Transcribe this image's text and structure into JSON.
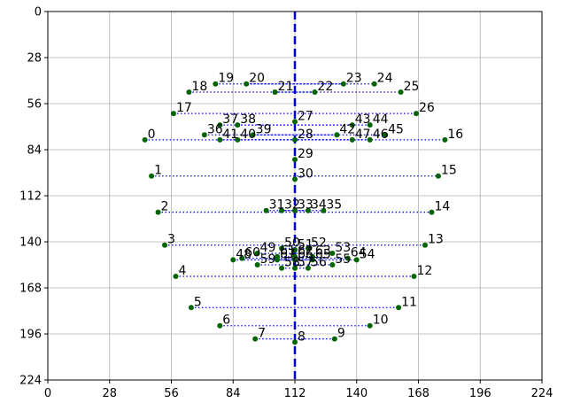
{
  "chart_data": {
    "type": "scatter",
    "title": "",
    "xlabel": "",
    "ylabel": "",
    "xlim": [
      0,
      224
    ],
    "ylim": [
      224,
      0
    ],
    "y_inverted": true,
    "grid": true,
    "xticks": [
      0,
      28,
      56,
      84,
      112,
      140,
      168,
      196,
      224
    ],
    "yticks": [
      0,
      28,
      56,
      84,
      112,
      140,
      168,
      196,
      224
    ],
    "point_color": "#006400",
    "pair_line_color": "#0000ff",
    "midline_color": "#0000cc",
    "midline_x": 112,
    "points": [
      {
        "label": "0",
        "x": 44,
        "y": 78
      },
      {
        "label": "1",
        "x": 47,
        "y": 100
      },
      {
        "label": "2",
        "x": 50,
        "y": 122
      },
      {
        "label": "3",
        "x": 53,
        "y": 142
      },
      {
        "label": "4",
        "x": 58,
        "y": 161
      },
      {
        "label": "5",
        "x": 65,
        "y": 180
      },
      {
        "label": "6",
        "x": 78,
        "y": 191
      },
      {
        "label": "7",
        "x": 94,
        "y": 199
      },
      {
        "label": "8",
        "x": 112,
        "y": 201
      },
      {
        "label": "9",
        "x": 130,
        "y": 199
      },
      {
        "label": "10",
        "x": 146,
        "y": 191
      },
      {
        "label": "11",
        "x": 159,
        "y": 180
      },
      {
        "label": "12",
        "x": 166,
        "y": 161
      },
      {
        "label": "13",
        "x": 171,
        "y": 142
      },
      {
        "label": "14",
        "x": 174,
        "y": 122
      },
      {
        "label": "15",
        "x": 177,
        "y": 100
      },
      {
        "label": "16",
        "x": 180,
        "y": 78
      },
      {
        "label": "17",
        "x": 57,
        "y": 62
      },
      {
        "label": "18",
        "x": 64,
        "y": 49
      },
      {
        "label": "19",
        "x": 76,
        "y": 44
      },
      {
        "label": "20",
        "x": 90,
        "y": 44
      },
      {
        "label": "21",
        "x": 103,
        "y": 49
      },
      {
        "label": "22",
        "x": 121,
        "y": 49
      },
      {
        "label": "23",
        "x": 134,
        "y": 44
      },
      {
        "label": "24",
        "x": 148,
        "y": 44
      },
      {
        "label": "25",
        "x": 160,
        "y": 49
      },
      {
        "label": "26",
        "x": 167,
        "y": 62
      },
      {
        "label": "27",
        "x": 112,
        "y": 67
      },
      {
        "label": "28",
        "x": 112,
        "y": 78
      },
      {
        "label": "29",
        "x": 112,
        "y": 90
      },
      {
        "label": "30",
        "x": 112,
        "y": 102
      },
      {
        "label": "31",
        "x": 99,
        "y": 121
      },
      {
        "label": "32",
        "x": 106,
        "y": 121
      },
      {
        "label": "33",
        "x": 112,
        "y": 121
      },
      {
        "label": "34",
        "x": 118,
        "y": 121
      },
      {
        "label": "35",
        "x": 125,
        "y": 121
      },
      {
        "label": "36",
        "x": 71,
        "y": 75
      },
      {
        "label": "37",
        "x": 78,
        "y": 69
      },
      {
        "label": "38",
        "x": 86,
        "y": 69
      },
      {
        "label": "39",
        "x": 93,
        "y": 75
      },
      {
        "label": "40",
        "x": 86,
        "y": 78
      },
      {
        "label": "41",
        "x": 78,
        "y": 78
      },
      {
        "label": "42",
        "x": 131,
        "y": 75
      },
      {
        "label": "43",
        "x": 138,
        "y": 69
      },
      {
        "label": "44",
        "x": 146,
        "y": 69
      },
      {
        "label": "45",
        "x": 153,
        "y": 75
      },
      {
        "label": "46",
        "x": 146,
        "y": 78
      },
      {
        "label": "47",
        "x": 138,
        "y": 78
      },
      {
        "label": "48",
        "x": 84,
        "y": 151
      },
      {
        "label": "49",
        "x": 95,
        "y": 147
      },
      {
        "label": "50",
        "x": 106,
        "y": 144
      },
      {
        "label": "51",
        "x": 112,
        "y": 145
      },
      {
        "label": "52",
        "x": 118,
        "y": 144
      },
      {
        "label": "53",
        "x": 129,
        "y": 147
      },
      {
        "label": "54",
        "x": 140,
        "y": 151
      },
      {
        "label": "55",
        "x": 129,
        "y": 154
      },
      {
        "label": "56",
        "x": 118,
        "y": 156
      },
      {
        "label": "57",
        "x": 112,
        "y": 156
      },
      {
        "label": "58",
        "x": 106,
        "y": 156
      },
      {
        "label": "59",
        "x": 95,
        "y": 154
      },
      {
        "label": "60",
        "x": 88,
        "y": 150
      },
      {
        "label": "61",
        "x": 104,
        "y": 149
      },
      {
        "label": "62",
        "x": 112,
        "y": 149
      },
      {
        "label": "63",
        "x": 120,
        "y": 149
      },
      {
        "label": "64",
        "x": 136,
        "y": 150
      },
      {
        "label": "65",
        "x": 120,
        "y": 151
      },
      {
        "label": "66",
        "x": 112,
        "y": 151
      },
      {
        "label": "67",
        "x": 104,
        "y": 151
      }
    ],
    "pairs": [
      [
        0,
        16
      ],
      [
        1,
        15
      ],
      [
        2,
        14
      ],
      [
        3,
        13
      ],
      [
        4,
        12
      ],
      [
        5,
        11
      ],
      [
        6,
        10
      ],
      [
        7,
        9
      ],
      [
        17,
        26
      ],
      [
        18,
        25
      ],
      [
        19,
        24
      ],
      [
        20,
        23
      ],
      [
        21,
        22
      ],
      [
        31,
        35
      ],
      [
        32,
        34
      ],
      [
        36,
        45
      ],
      [
        37,
        44
      ],
      [
        38,
        43
      ],
      [
        39,
        42
      ],
      [
        40,
        47
      ],
      [
        41,
        46
      ],
      [
        48,
        54
      ],
      [
        49,
        53
      ],
      [
        50,
        52
      ],
      [
        59,
        55
      ],
      [
        58,
        56
      ],
      [
        60,
        64
      ],
      [
        61,
        63
      ],
      [
        67,
        65
      ]
    ]
  }
}
